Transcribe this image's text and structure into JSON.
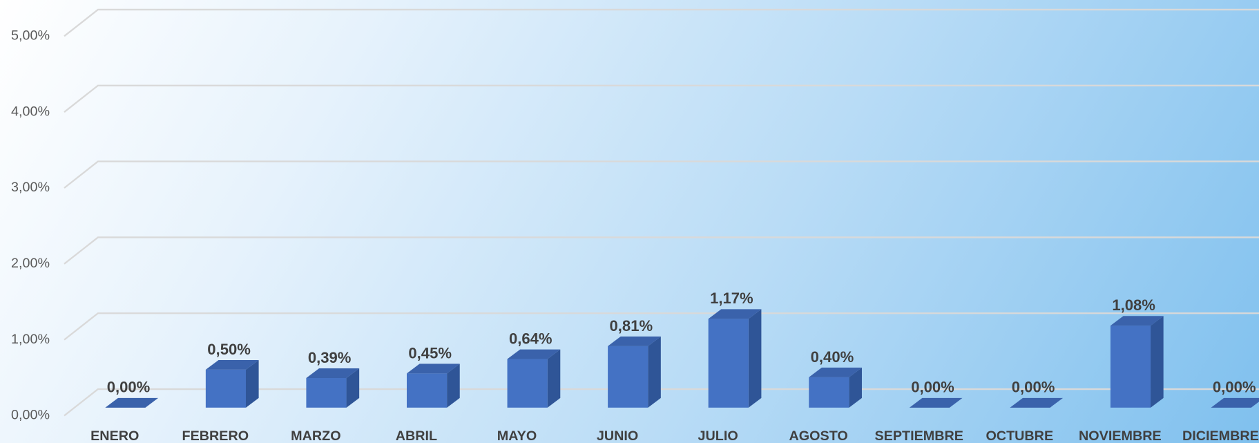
{
  "chart_data": {
    "type": "bar3d",
    "categories": [
      "ENERO",
      "FEBRERO",
      "MARZO",
      "ABRIL",
      "MAYO",
      "JUNIO",
      "JULIO",
      "AGOSTO",
      "SEPTIEMBRE",
      "OCTUBRE",
      "NOVIEMBRE",
      "DICIEMBRE"
    ],
    "values": [
      0,
      0.5,
      0.39,
      0.45,
      0.64,
      0.81,
      1.17,
      0.4,
      0,
      0,
      1.08,
      0
    ],
    "value_labels": [
      "0,00%",
      "0,50%",
      "0,39%",
      "0,45%",
      "0,64%",
      "0,81%",
      "1,17%",
      "0,40%",
      "0,00%",
      "0,00%",
      "1,08%",
      "0,00%"
    ],
    "color": "#4472c4",
    "ylim": [
      0,
      5
    ],
    "yticks": [
      {
        "value": 0,
        "label": "0,00%"
      },
      {
        "value": 1,
        "label": "1,00%"
      },
      {
        "value": 2,
        "label": "2,00%"
      },
      {
        "value": 3,
        "label": "3,00%"
      },
      {
        "value": 4,
        "label": "4,00%"
      },
      {
        "value": 5,
        "label": "5,00%"
      }
    ],
    "grid": true
  }
}
